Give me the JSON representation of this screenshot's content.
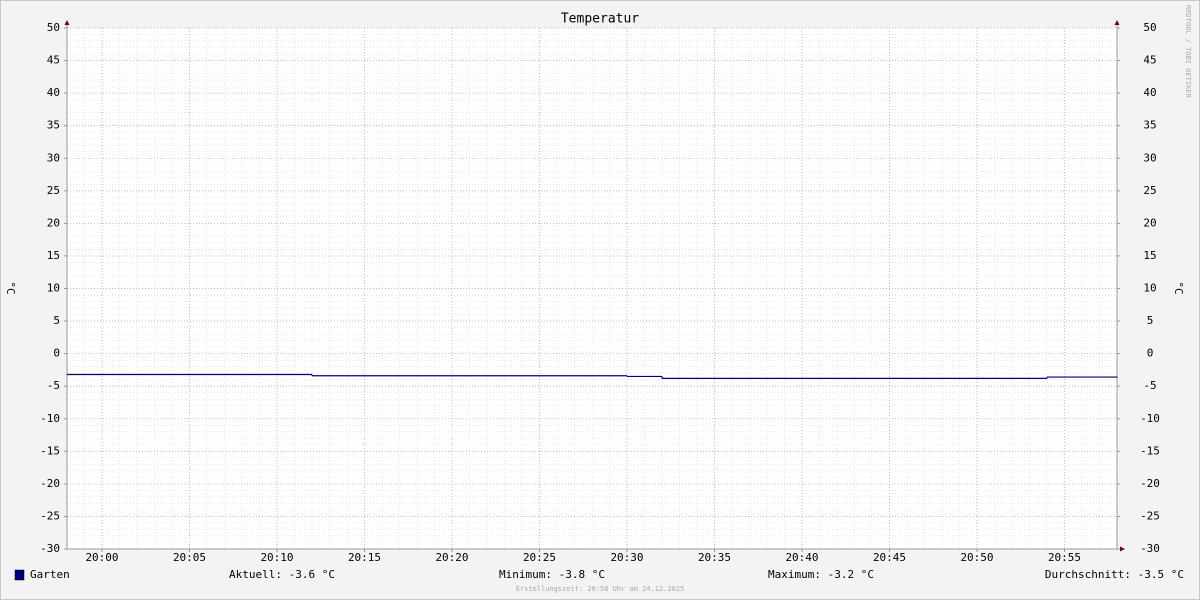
{
  "chart_data": {
    "type": "line",
    "title": "Temperatur",
    "ylabel": "°C",
    "y2label": "°C",
    "watermark": "RRDTOOL / TOBI OETIKER",
    "footer": "Erstellungszeit: 20:58 Uhr am 24.12.2025",
    "x": [
      "19:58",
      "20:00",
      "20:12",
      "20:30",
      "20:32",
      "20:54",
      "20:58"
    ],
    "xlim": [
      "19:58",
      "20:58"
    ],
    "xticks": [
      "20:00",
      "20:05",
      "20:10",
      "20:15",
      "20:20",
      "20:25",
      "20:30",
      "20:35",
      "20:40",
      "20:45",
      "20:50",
      "20:55"
    ],
    "series": [
      {
        "name": "Garten",
        "color": "#00007f",
        "values": [
          -3.2,
          -3.2,
          -3.4,
          -3.5,
          -3.8,
          -3.6,
          -3.6
        ]
      }
    ],
    "ylim": [
      -30,
      50
    ],
    "yticks": [
      -30,
      -25,
      -20,
      -15,
      -10,
      -5,
      0,
      5,
      10,
      15,
      20,
      25,
      30,
      35,
      40,
      45,
      50
    ],
    "y2lim": [
      -30,
      50
    ],
    "y2ticks": [
      -30,
      -25,
      -20,
      -15,
      -10,
      -5,
      0,
      5,
      10,
      15,
      20,
      25,
      30,
      35,
      40,
      45,
      50
    ],
    "grid": true,
    "legend": "bottom",
    "stats": [
      "Aktuell: -3.6 °C",
      "Minimum: -3.8 °C",
      "Maximum: -3.2 °C",
      "Durchschnitt: -3.5 °C"
    ]
  }
}
